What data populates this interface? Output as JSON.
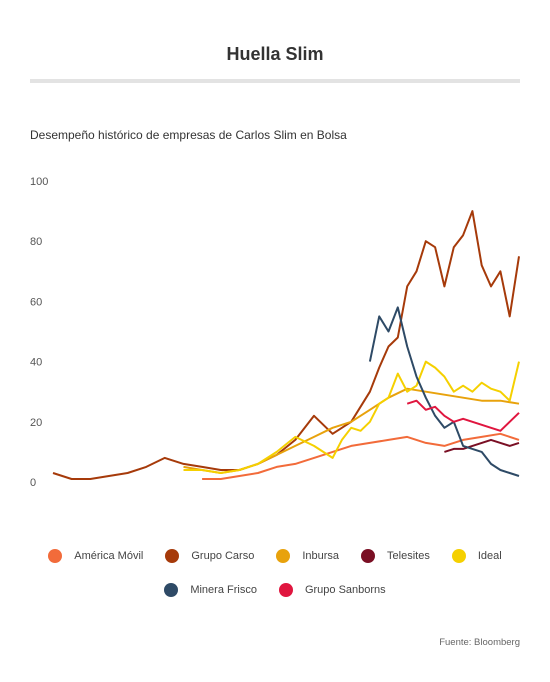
{
  "title": "Huella Slim",
  "subtitle": "Desempeño histórico de empresas de Carlos Slim en Bolsa",
  "source": "Fuente: Bloomberg",
  "legend_rows": [
    [
      {
        "name": "América Móvil",
        "color": "#f26b3a"
      },
      {
        "name": "Grupo Carso",
        "color": "#a63a0a"
      },
      {
        "name": "Inbursa",
        "color": "#e8a20c"
      },
      {
        "name": "Telesites",
        "color": "#7a0f24"
      },
      {
        "name": "Ideal",
        "color": "#f5d000"
      }
    ],
    [
      {
        "name": "Minera Frisco",
        "color": "#2e4a66"
      },
      {
        "name": "Grupo Sanborns",
        "color": "#e0163f"
      }
    ]
  ],
  "chart_data": {
    "type": "line",
    "title": "Huella Slim",
    "subtitle": "Desempeño histórico de empresas de Carlos Slim en Bolsa",
    "xlabel": "",
    "ylabel": "",
    "xlim": [
      0,
      100
    ],
    "ylim": [
      0,
      100
    ],
    "yticks": [
      0,
      20,
      40,
      60,
      80,
      100
    ],
    "grid": false,
    "legend_position": "bottom",
    "series": [
      {
        "name": "América Móvil",
        "color": "#f26b3a",
        "x": [
          32,
          36,
          40,
          44,
          48,
          52,
          56,
          60,
          64,
          68,
          72,
          76,
          80,
          84,
          88,
          92,
          96,
          100
        ],
        "y": [
          1,
          1,
          2,
          3,
          5,
          6,
          8,
          10,
          12,
          13,
          14,
          15,
          13,
          12,
          14,
          15,
          16,
          14
        ]
      },
      {
        "name": "Grupo Carso",
        "color": "#a63a0a",
        "x": [
          0,
          4,
          8,
          12,
          16,
          20,
          24,
          28,
          32,
          36,
          40,
          44,
          48,
          52,
          56,
          60,
          64,
          68,
          70,
          72,
          74,
          76,
          78,
          80,
          82,
          84,
          86,
          88,
          90,
          92,
          94,
          96,
          98,
          100
        ],
        "y": [
          3,
          1,
          1,
          2,
          3,
          5,
          8,
          6,
          5,
          4,
          4,
          6,
          9,
          14,
          22,
          16,
          20,
          30,
          38,
          45,
          48,
          65,
          70,
          80,
          78,
          65,
          78,
          82,
          90,
          72,
          65,
          70,
          55,
          75
        ]
      },
      {
        "name": "Inbursa",
        "color": "#e8a20c",
        "x": [
          28,
          32,
          36,
          40,
          44,
          48,
          52,
          56,
          60,
          64,
          68,
          72,
          76,
          80,
          84,
          88,
          92,
          96,
          100
        ],
        "y": [
          5,
          4,
          3,
          4,
          6,
          9,
          12,
          15,
          18,
          20,
          24,
          28,
          31,
          30,
          29,
          28,
          27,
          27,
          26
        ]
      },
      {
        "name": "Telesites",
        "color": "#7a0f24",
        "x": [
          84,
          86,
          88,
          90,
          92,
          94,
          96,
          98,
          100
        ],
        "y": [
          10,
          11,
          11,
          12,
          13,
          14,
          13,
          12,
          13
        ]
      },
      {
        "name": "Ideal",
        "color": "#f5d000",
        "x": [
          28,
          32,
          36,
          40,
          44,
          48,
          52,
          56,
          60,
          62,
          64,
          66,
          68,
          70,
          72,
          74,
          76,
          78,
          80,
          82,
          84,
          86,
          88,
          90,
          92,
          94,
          96,
          98,
          100
        ],
        "y": [
          4,
          4,
          3,
          4,
          6,
          10,
          15,
          12,
          8,
          14,
          18,
          17,
          20,
          26,
          28,
          36,
          30,
          32,
          40,
          38,
          35,
          30,
          32,
          30,
          33,
          31,
          30,
          27,
          40
        ]
      },
      {
        "name": "Minera Frisco",
        "color": "#2e4a66",
        "x": [
          68,
          70,
          72,
          74,
          76,
          78,
          80,
          82,
          84,
          86,
          88,
          90,
          92,
          94,
          96,
          98,
          100
        ],
        "y": [
          40,
          55,
          50,
          58,
          45,
          35,
          28,
          22,
          18,
          20,
          12,
          11,
          10,
          6,
          4,
          3,
          2
        ]
      },
      {
        "name": "Grupo Sanborns",
        "color": "#e0163f",
        "x": [
          76,
          78,
          80,
          82,
          84,
          86,
          88,
          90,
          92,
          94,
          96,
          98,
          100
        ],
        "y": [
          26,
          27,
          24,
          25,
          22,
          20,
          21,
          20,
          19,
          18,
          17,
          20,
          23
        ]
      }
    ]
  }
}
